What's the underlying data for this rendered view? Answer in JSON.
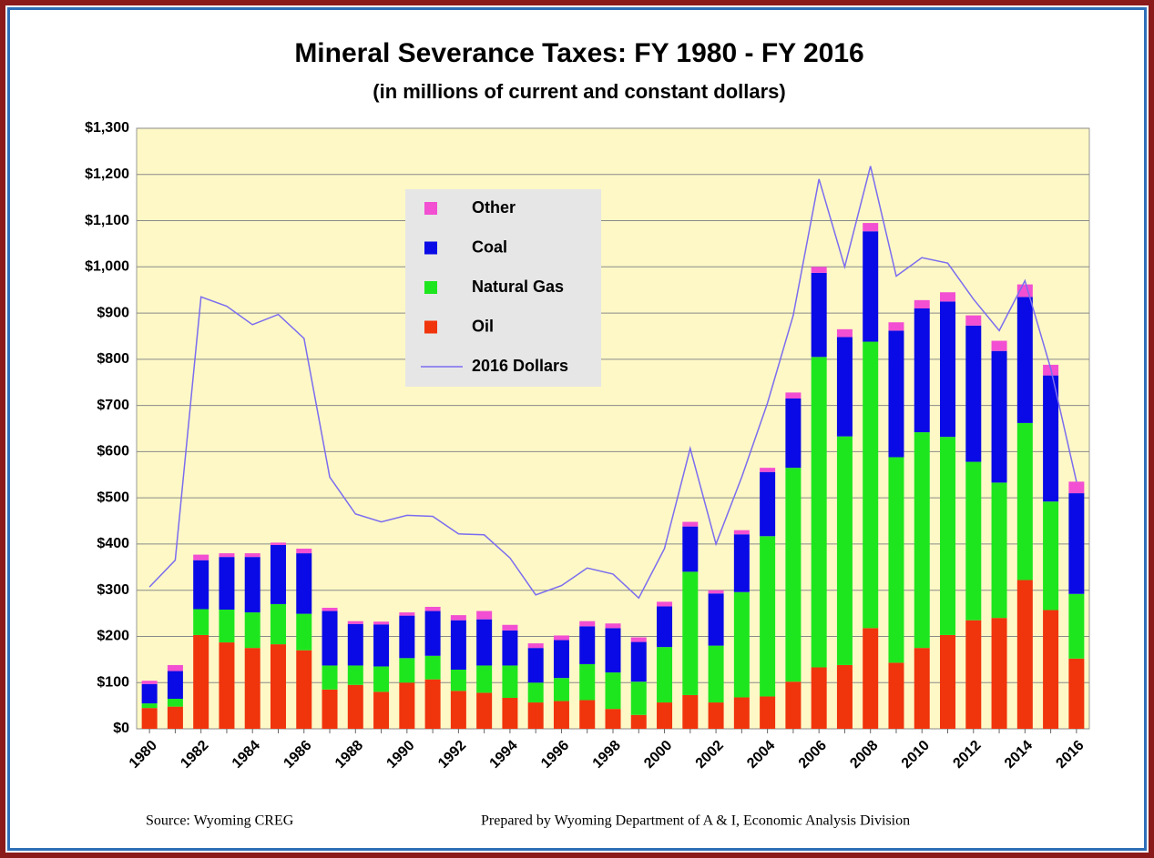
{
  "chart_data": {
    "type": "bar",
    "stacked": true,
    "title": "Mineral Severance Taxes: FY 1980 - FY 2016",
    "subtitle": "(in millions of current and constant dollars)",
    "source": "Source: Wyoming CREG",
    "credit": "Prepared by Wyoming Department of A & I, Economic Analysis Division",
    "categories": [
      "1980",
      null,
      "1982",
      null,
      "1984",
      null,
      "1986",
      null,
      "1988",
      null,
      "1990",
      null,
      "1992",
      null,
      "1994",
      null,
      "1996",
      null,
      "1998",
      null,
      "2000",
      null,
      "2002",
      null,
      "2004",
      null,
      "2006",
      null,
      "2008",
      null,
      "2010",
      null,
      "2012",
      null,
      "2014",
      null,
      "2016"
    ],
    "series": [
      {
        "name": "Oil",
        "color": "#f0340c",
        "values": [
          45,
          48,
          203,
          187,
          175,
          183,
          170,
          85,
          95,
          80,
          100,
          107,
          82,
          78,
          67,
          57,
          60,
          62,
          43,
          30,
          57,
          73,
          57,
          68,
          70,
          102,
          133,
          138,
          218,
          143,
          175,
          203,
          235,
          240,
          322,
          257,
          152
        ]
      },
      {
        "name": "Natural Gas",
        "color": "#1ee61e",
        "values": [
          10,
          17,
          56,
          71,
          77,
          87,
          79,
          52,
          42,
          55,
          53,
          51,
          46,
          59,
          70,
          43,
          50,
          78,
          79,
          72,
          120,
          267,
          123,
          228,
          347,
          463,
          672,
          495,
          620,
          445,
          467,
          429,
          343,
          293,
          340,
          235,
          140
        ]
      },
      {
        "name": "Coal",
        "color": "#0a0ae6",
        "values": [
          42,
          60,
          106,
          114,
          120,
          128,
          131,
          118,
          90,
          91,
          92,
          97,
          107,
          100,
          76,
          75,
          82,
          82,
          96,
          86,
          88,
          98,
          113,
          125,
          139,
          150,
          182,
          215,
          239,
          274,
          268,
          293,
          295,
          285,
          273,
          273,
          218
        ]
      },
      {
        "name": "Other",
        "color": "#f24fd2",
        "values": [
          7,
          13,
          12,
          8,
          8,
          5,
          10,
          7,
          6,
          6,
          7,
          9,
          11,
          18,
          12,
          10,
          10,
          11,
          10,
          10,
          10,
          10,
          7,
          9,
          9,
          13,
          13,
          17,
          18,
          18,
          18,
          20,
          22,
          22,
          27,
          23,
          25
        ]
      },
      {
        "name": "2016 Dollars",
        "type": "line",
        "color": "#7b6cf0",
        "values": [
          307,
          365,
          935,
          915,
          875,
          897,
          845,
          545,
          465,
          448,
          462,
          460,
          422,
          420,
          370,
          290,
          310,
          348,
          335,
          283,
          390,
          607,
          400,
          545,
          705,
          895,
          1190,
          1000,
          1218,
          980,
          1020,
          1008,
          930,
          862,
          970,
          780,
          535
        ]
      }
    ],
    "ylim": [
      0,
      1300
    ],
    "yticks": [
      {
        "value": 0,
        "label": "$0"
      },
      {
        "value": 100,
        "label": "$100"
      },
      {
        "value": 200,
        "label": "$200"
      },
      {
        "value": 300,
        "label": "$300"
      },
      {
        "value": 400,
        "label": "$400"
      },
      {
        "value": 500,
        "label": "$500"
      },
      {
        "value": 600,
        "label": "$600"
      },
      {
        "value": 700,
        "label": "$700"
      },
      {
        "value": 800,
        "label": "$800"
      },
      {
        "value": 900,
        "label": "$900"
      },
      {
        "value": 1000,
        "label": "$1,000"
      },
      {
        "value": 1100,
        "label": "$1,100"
      },
      {
        "value": 1200,
        "label": "$1,200"
      },
      {
        "value": 1300,
        "label": "$1,300"
      }
    ],
    "grid": true
  }
}
